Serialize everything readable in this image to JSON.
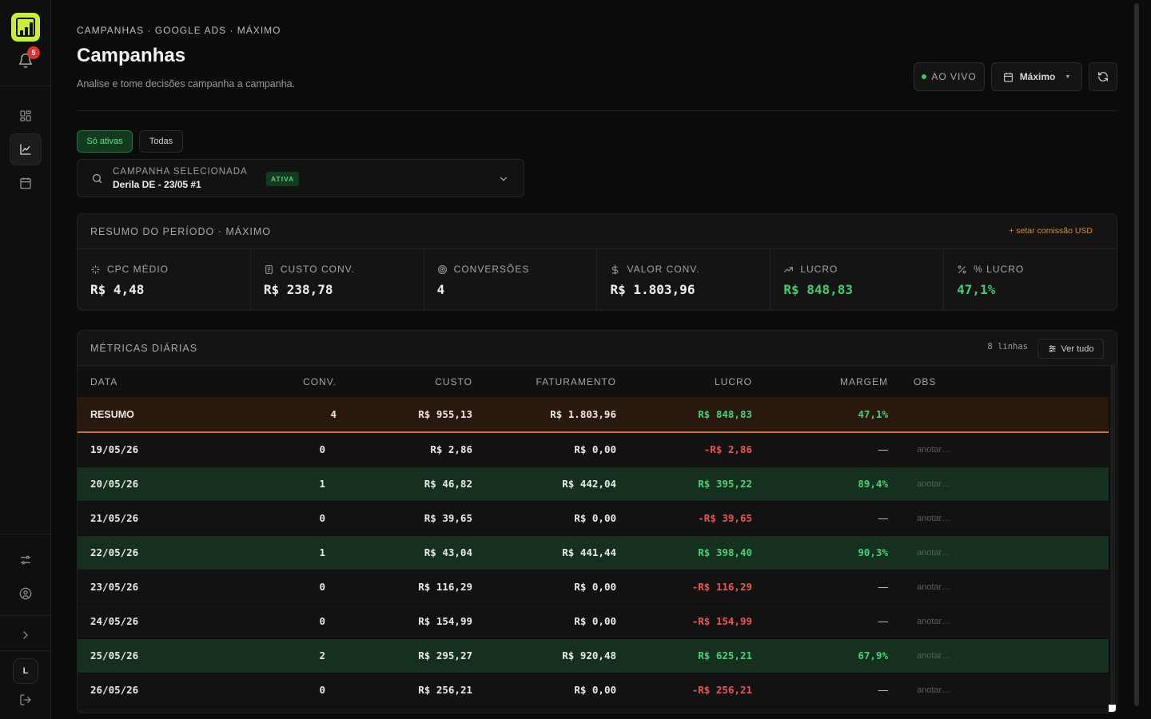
{
  "sidebar": {
    "notifications_count": "5",
    "avatar_initial": "L",
    "logo_color": "#c8ef3a",
    "items": [
      "dashboard-icon",
      "chart-icon",
      "calendar-icon",
      "sliders-icon",
      "user-circle-icon",
      "chevron-right-icon",
      "logout-icon"
    ]
  },
  "header": {
    "breadcrumb": "CAMPANHAS · GOOGLE ADS · MÁXIMO",
    "title": "Campanhas",
    "subtitle": "Analise e tome decisões campanha a campanha.",
    "live_label": "AO VIVO",
    "period_label": "Máximo"
  },
  "filters": {
    "active_only": "Só ativas",
    "all": "Todas"
  },
  "campaign": {
    "label": "CAMPANHA SELECIONADA",
    "value": "Derila DE - 23/05 #1",
    "status": "ATIVA"
  },
  "summary": {
    "title": "RESUMO DO PERÍODO · MÁXIMO",
    "commission_link": "+ setar comissão USD",
    "kpis": [
      {
        "label": "CPC MÉDIO",
        "value": "R$ 4,48"
      },
      {
        "label": "CUSTO CONV.",
        "value": "R$ 238,78"
      },
      {
        "label": "CONVERSÕES",
        "value": "4"
      },
      {
        "label": "VALOR CONV.",
        "value": "R$ 1.803,96"
      },
      {
        "label": "LUCRO",
        "value": "R$ 848,83"
      },
      {
        "label": "% LUCRO",
        "value": "47,1%"
      }
    ]
  },
  "daily": {
    "title": "MÉTRICAS DIÁRIAS",
    "rows_count": "8 linhas",
    "view_all": "Ver tudo",
    "columns": [
      "DATA",
      "CONV.",
      "CUSTO",
      "FATURAMENTO",
      "LUCRO",
      "MARGEM",
      "OBS"
    ],
    "total": {
      "label": "RESUMO",
      "conv": "4",
      "cost": "R$ 955,13",
      "revenue": "R$ 1.803,96",
      "profit": "R$ 848,83",
      "margin": "47,1%"
    },
    "rows": [
      {
        "date": "19/05/26",
        "conv": "0",
        "cost": "R$ 2,86",
        "revenue": "R$ 0,00",
        "profit": "-R$ 2,86",
        "margin": "—",
        "obs": "anotar…"
      },
      {
        "date": "20/05/26",
        "conv": "1",
        "cost": "R$ 46,82",
        "revenue": "R$ 442,04",
        "profit": "R$ 395,22",
        "margin": "89,4%",
        "obs": "anotar…"
      },
      {
        "date": "21/05/26",
        "conv": "0",
        "cost": "R$ 39,65",
        "revenue": "R$ 0,00",
        "profit": "-R$ 39,65",
        "margin": "—",
        "obs": "anotar…"
      },
      {
        "date": "22/05/26",
        "conv": "1",
        "cost": "R$ 43,04",
        "revenue": "R$ 441,44",
        "profit": "R$ 398,40",
        "margin": "90,3%",
        "obs": "anotar…"
      },
      {
        "date": "23/05/26",
        "conv": "0",
        "cost": "R$ 116,29",
        "revenue": "R$ 0,00",
        "profit": "-R$ 116,29",
        "margin": "—",
        "obs": "anotar…"
      },
      {
        "date": "24/05/26",
        "conv": "0",
        "cost": "R$ 154,99",
        "revenue": "R$ 0,00",
        "profit": "-R$ 154,99",
        "margin": "—",
        "obs": "anotar…"
      },
      {
        "date": "25/05/26",
        "conv": "2",
        "cost": "R$ 295,27",
        "revenue": "R$ 920,48",
        "profit": "R$ 625,21",
        "margin": "67,9%",
        "obs": "anotar…"
      },
      {
        "date": "26/05/26",
        "conv": "0",
        "cost": "R$ 256,21",
        "revenue": "R$ 0,00",
        "profit": "-R$ 256,21",
        "margin": "—",
        "obs": "anotar…"
      }
    ]
  }
}
